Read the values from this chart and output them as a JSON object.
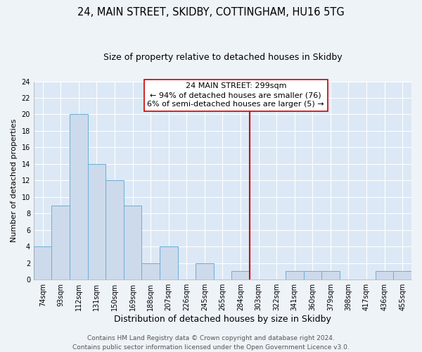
{
  "title": "24, MAIN STREET, SKIDBY, COTTINGHAM, HU16 5TG",
  "subtitle": "Size of property relative to detached houses in Skidby",
  "xlabel": "Distribution of detached houses by size in Skidby",
  "ylabel": "Number of detached properties",
  "bin_labels": [
    "74sqm",
    "93sqm",
    "112sqm",
    "131sqm",
    "150sqm",
    "169sqm",
    "188sqm",
    "207sqm",
    "226sqm",
    "245sqm",
    "265sqm",
    "284sqm",
    "303sqm",
    "322sqm",
    "341sqm",
    "360sqm",
    "379sqm",
    "398sqm",
    "417sqm",
    "436sqm",
    "455sqm"
  ],
  "bar_values": [
    4,
    9,
    20,
    14,
    12,
    9,
    2,
    4,
    0,
    2,
    0,
    1,
    0,
    0,
    1,
    1,
    1,
    0,
    0,
    1,
    1
  ],
  "bar_color": "#cddaeb",
  "bar_edge_color": "#6baed6",
  "vline_x": 11.5,
  "vline_color": "#cc0000",
  "annotation_line1": "24 MAIN STREET: 299sqm",
  "annotation_line2": "← 94% of detached houses are smaller (76)",
  "annotation_line3": "6% of semi-detached houses are larger (5) →",
  "ylim": [
    0,
    24
  ],
  "yticks": [
    0,
    2,
    4,
    6,
    8,
    10,
    12,
    14,
    16,
    18,
    20,
    22,
    24
  ],
  "footer_line1": "Contains HM Land Registry data © Crown copyright and database right 2024.",
  "footer_line2": "Contains public sector information licensed under the Open Government Licence v3.0.",
  "plot_bg_color": "#dce8f5",
  "fig_bg_color": "#eef3f8",
  "grid_color": "#ffffff",
  "title_fontsize": 10.5,
  "subtitle_fontsize": 9,
  "xlabel_fontsize": 9,
  "ylabel_fontsize": 8,
  "tick_fontsize": 7,
  "annotation_fontsize": 8,
  "footer_fontsize": 6.5
}
